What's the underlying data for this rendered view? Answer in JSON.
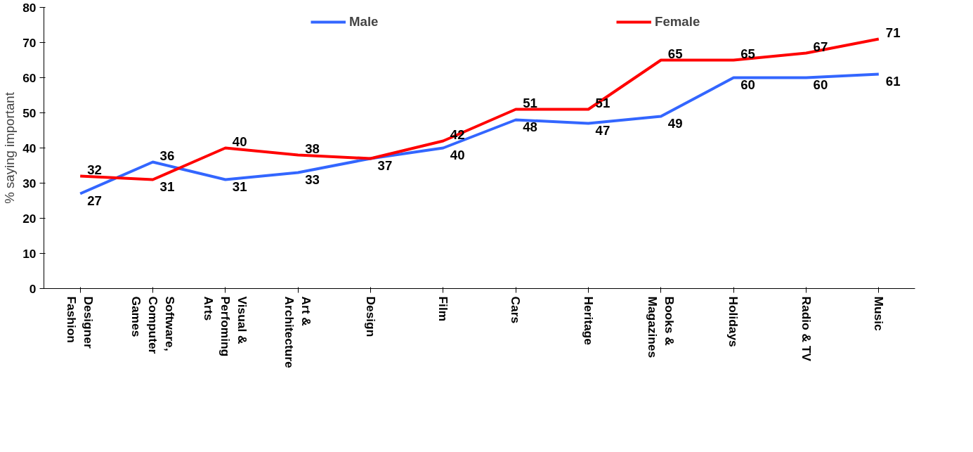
{
  "chart_data": {
    "type": "line",
    "ylabel": "% saying important",
    "categories": [
      "Designer\nFashion",
      "Software,\nComputer\nGames",
      "Visual &\nPerfoming\nArts",
      "Art &\nArchitecture",
      "Design",
      "Film",
      "Cars",
      "Heritage",
      "Books &\nMagazines",
      "Holidays",
      "Radio & TV",
      "Music"
    ],
    "series": [
      {
        "name": "Male",
        "color": "#3366ff",
        "values": [
          27,
          36,
          31,
          33,
          37,
          40,
          48,
          47,
          49,
          60,
          60,
          61
        ],
        "value_labels": [
          "27",
          "36",
          "31",
          "33",
          "37",
          "40",
          "48",
          "47",
          "49",
          "60",
          "60",
          "61"
        ]
      },
      {
        "name": "Female",
        "color": "#ff0000",
        "values": [
          32,
          31,
          40,
          38,
          37,
          42,
          51,
          51,
          65,
          65,
          67,
          71
        ],
        "value_labels": [
          "32",
          "31",
          "40",
          "38",
          null,
          "42",
          "51",
          "51",
          "65",
          "65",
          "67",
          "71"
        ]
      }
    ],
    "ylim": [
      0,
      80
    ],
    "yticks": [
      0,
      10,
      20,
      30,
      40,
      50,
      60,
      70,
      80
    ],
    "grid": false,
    "legend": "top",
    "marker": "none",
    "line_style": "solid"
  }
}
